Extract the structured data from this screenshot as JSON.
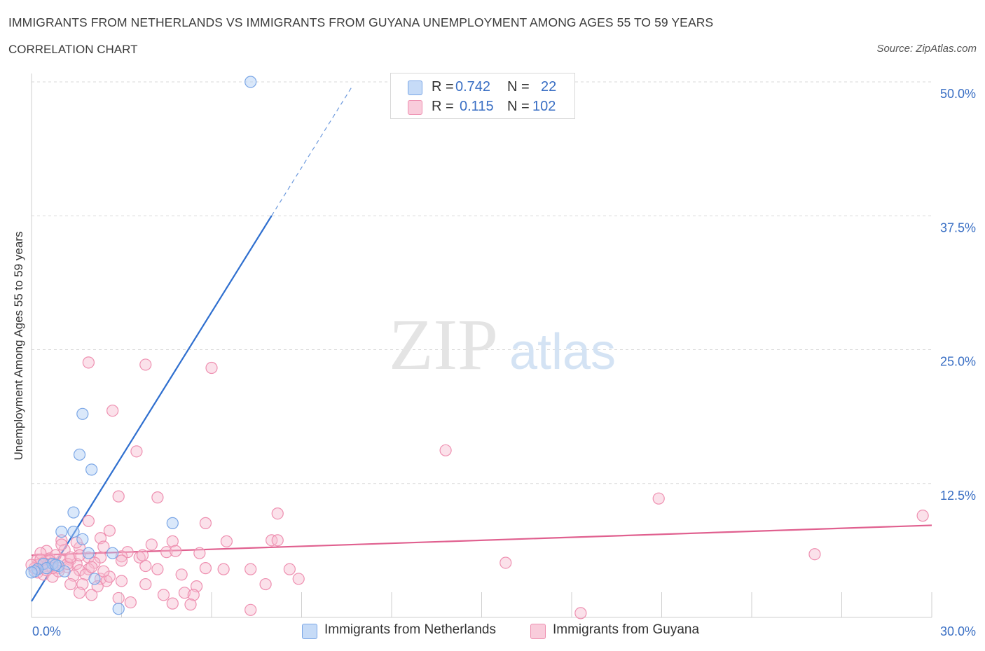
{
  "header": {
    "title": "IMMIGRANTS FROM NETHERLANDS VS IMMIGRANTS FROM GUYANA UNEMPLOYMENT AMONG AGES 55 TO 59 YEARS",
    "subtitle": "CORRELATION CHART",
    "source": "Source: ZipAtlas.com"
  },
  "legend": {
    "rows": [
      {
        "r_label": "R =",
        "r_value": "0.742",
        "n_label": "N =",
        "n_value": "22"
      },
      {
        "r_label": "R =",
        "r_value": "0.115",
        "n_label": "N =",
        "n_value": "102"
      }
    ]
  },
  "bottom_legend": [
    "Immigrants from Netherlands",
    "Immigrants from Guyana"
  ],
  "watermark": {
    "zip": "ZIP",
    "atlas": "atlas"
  },
  "colors": {
    "blue_fill": "#aecbf5",
    "blue_stroke": "#7aa6e6",
    "blue_line": "#2f6fcf",
    "pink_fill": "#f6bcd0",
    "pink_stroke": "#ee8fb0",
    "pink_line": "#e0608f",
    "axis_text": "#3a6fc4",
    "grid": "#d9d9d9"
  },
  "chart_data": {
    "type": "scatter",
    "title": "IMMIGRANTS FROM NETHERLANDS VS IMMIGRANTS FROM GUYANA UNEMPLOYMENT AMONG AGES 55 TO 59 YEARS",
    "xlabel": "",
    "ylabel": "Unemployment Among Ages 55 to 59 years",
    "xlim": [
      0,
      30
    ],
    "ylim": [
      0,
      50
    ],
    "x_tick_labels": [
      "0.0%",
      "30.0%"
    ],
    "y_tick_labels": [
      "12.5%",
      "25.0%",
      "37.5%",
      "50.0%"
    ],
    "y_ticks": [
      12.5,
      25,
      37.5,
      50
    ],
    "grid": true,
    "series": [
      {
        "name": "Immigrants from Netherlands",
        "color": "blue",
        "R": 0.742,
        "N": 22,
        "trend": {
          "x0": 0,
          "y0": 1.5,
          "x1": 8.0,
          "y1": 37.5,
          "dash_to_x": 10.7
        },
        "points": [
          [
            7.3,
            50.0
          ],
          [
            1.7,
            19.0
          ],
          [
            1.6,
            15.2
          ],
          [
            2.0,
            13.8
          ],
          [
            1.4,
            9.8
          ],
          [
            4.7,
            8.8
          ],
          [
            1.0,
            8.0
          ],
          [
            1.4,
            8.0
          ],
          [
            1.7,
            7.3
          ],
          [
            2.7,
            6.0
          ],
          [
            1.9,
            6.0
          ],
          [
            0.4,
            5.0
          ],
          [
            0.7,
            5.0
          ],
          [
            0.9,
            4.8
          ],
          [
            0.5,
            4.6
          ],
          [
            0.2,
            4.5
          ],
          [
            0.1,
            4.3
          ],
          [
            0.0,
            4.2
          ],
          [
            1.1,
            4.3
          ],
          [
            2.1,
            3.6
          ],
          [
            0.8,
            4.9
          ],
          [
            2.9,
            0.8
          ]
        ]
      },
      {
        "name": "Immigrants from Guyana",
        "color": "pink",
        "R": 0.115,
        "N": 102,
        "trend": {
          "x0": 0,
          "y0": 5.8,
          "x1": 30.0,
          "y1": 8.6
        },
        "points": [
          [
            1.9,
            23.8
          ],
          [
            3.8,
            23.6
          ],
          [
            6.0,
            23.3
          ],
          [
            2.7,
            19.3
          ],
          [
            3.5,
            15.5
          ],
          [
            13.8,
            15.6
          ],
          [
            2.9,
            11.3
          ],
          [
            4.2,
            11.2
          ],
          [
            20.9,
            11.1
          ],
          [
            8.2,
            9.7
          ],
          [
            29.7,
            9.5
          ],
          [
            1.9,
            9.0
          ],
          [
            5.8,
            8.8
          ],
          [
            2.6,
            8.1
          ],
          [
            1.0,
            7.2
          ],
          [
            2.3,
            7.4
          ],
          [
            4.7,
            7.1
          ],
          [
            6.5,
            7.1
          ],
          [
            8.0,
            7.2
          ],
          [
            8.2,
            7.2
          ],
          [
            4.0,
            6.8
          ],
          [
            1.6,
            6.5
          ],
          [
            2.4,
            6.6
          ],
          [
            0.5,
            6.2
          ],
          [
            3.2,
            6.1
          ],
          [
            4.5,
            6.1
          ],
          [
            5.6,
            6.0
          ],
          [
            2.3,
            5.6
          ],
          [
            3.0,
            5.7
          ],
          [
            3.6,
            5.6
          ],
          [
            0.2,
            5.4
          ],
          [
            0.6,
            5.5
          ],
          [
            1.0,
            5.3
          ],
          [
            1.3,
            5.4
          ],
          [
            1.9,
            5.6
          ],
          [
            3.0,
            5.3
          ],
          [
            26.1,
            5.9
          ],
          [
            0.3,
            5.0
          ],
          [
            0.7,
            5.1
          ],
          [
            1.5,
            5.0
          ],
          [
            2.1,
            5.1
          ],
          [
            3.8,
            4.8
          ],
          [
            15.8,
            5.1
          ],
          [
            0.5,
            4.8
          ],
          [
            1.2,
            4.7
          ],
          [
            1.9,
            4.5
          ],
          [
            0.9,
            4.6
          ],
          [
            1.6,
            4.4
          ],
          [
            4.2,
            4.5
          ],
          [
            5.8,
            4.6
          ],
          [
            6.4,
            4.5
          ],
          [
            7.3,
            4.5
          ],
          [
            8.6,
            4.5
          ],
          [
            0.2,
            4.2
          ],
          [
            0.4,
            4.0
          ],
          [
            0.7,
            3.8
          ],
          [
            1.4,
            3.9
          ],
          [
            1.8,
            4.0
          ],
          [
            2.3,
            3.6
          ],
          [
            2.5,
            3.4
          ],
          [
            3.0,
            3.4
          ],
          [
            5.0,
            4.0
          ],
          [
            8.9,
            3.6
          ],
          [
            1.3,
            3.1
          ],
          [
            1.7,
            3.1
          ],
          [
            2.2,
            2.9
          ],
          [
            3.8,
            3.1
          ],
          [
            5.5,
            2.9
          ],
          [
            7.8,
            3.1
          ],
          [
            1.6,
            2.3
          ],
          [
            2.0,
            2.1
          ],
          [
            4.4,
            2.1
          ],
          [
            5.1,
            2.3
          ],
          [
            5.4,
            2.1
          ],
          [
            2.9,
            1.8
          ],
          [
            3.3,
            1.4
          ],
          [
            4.7,
            1.3
          ],
          [
            5.3,
            1.2
          ],
          [
            7.3,
            0.7
          ],
          [
            18.3,
            0.4
          ],
          [
            0.3,
            6.0
          ],
          [
            0.8,
            5.8
          ],
          [
            1.1,
            6.3
          ],
          [
            0.6,
            5.3
          ],
          [
            1.2,
            5.0
          ],
          [
            0.4,
            5.1
          ],
          [
            0.9,
            4.3
          ],
          [
            0.2,
            4.9
          ],
          [
            0.1,
            4.6
          ],
          [
            0.3,
            5.4
          ],
          [
            1.3,
            5.6
          ],
          [
            0.7,
            4.6
          ],
          [
            0.5,
            4.4
          ],
          [
            0.0,
            4.9
          ],
          [
            1.6,
            5.8
          ],
          [
            2.0,
            4.7
          ],
          [
            2.6,
            3.8
          ],
          [
            3.7,
            5.8
          ],
          [
            4.8,
            6.2
          ],
          [
            1.0,
            6.8
          ],
          [
            1.5,
            7.0
          ],
          [
            2.4,
            4.3
          ]
        ]
      }
    ]
  }
}
